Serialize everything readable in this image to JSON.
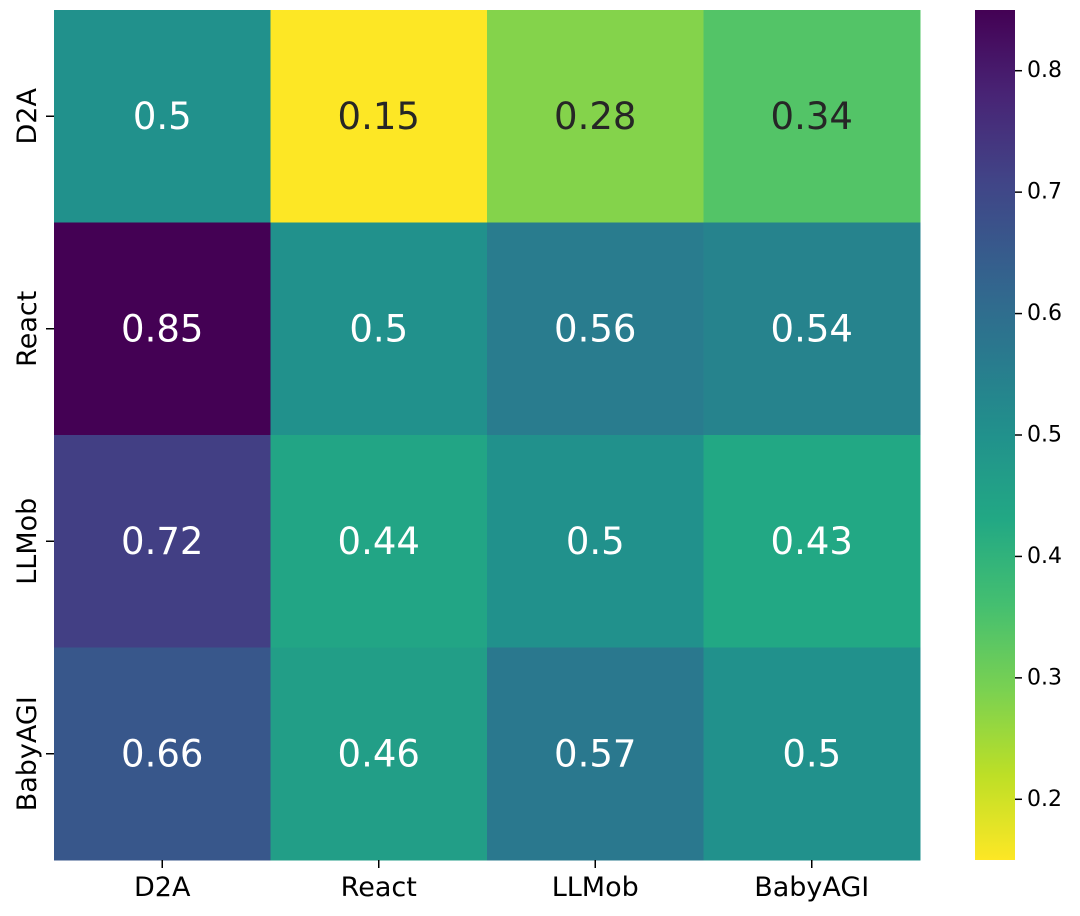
{
  "chart_data": {
    "type": "heatmap",
    "title": "",
    "xlabel": "",
    "ylabel": "",
    "x_categories": [
      "D2A",
      "React",
      "LLMob",
      "BabyAGI"
    ],
    "y_categories": [
      "D2A",
      "React",
      "LLMob",
      "BabyAGI"
    ],
    "values": [
      [
        0.5,
        0.15,
        0.28,
        0.34
      ],
      [
        0.85,
        0.5,
        0.56,
        0.54
      ],
      [
        0.72,
        0.44,
        0.5,
        0.43
      ],
      [
        0.66,
        0.46,
        0.57,
        0.5
      ]
    ],
    "annotations": [
      [
        "0.5",
        "0.15",
        "0.28",
        "0.34"
      ],
      [
        "0.85",
        "0.5",
        "0.56",
        "0.54"
      ],
      [
        "0.72",
        "0.44",
        "0.5",
        "0.43"
      ],
      [
        "0.66",
        "0.46",
        "0.57",
        "0.5"
      ]
    ],
    "colormap": "viridis_r",
    "vmin": 0.15,
    "vmax": 0.85,
    "colorbar": {
      "ticks": [
        0.2,
        0.3,
        0.4,
        0.5,
        0.6,
        0.7,
        0.8
      ],
      "tick_labels": [
        "0.2",
        "0.3",
        "0.4",
        "0.5",
        "0.6",
        "0.7",
        "0.8"
      ]
    },
    "grid": false,
    "legend": "none"
  }
}
